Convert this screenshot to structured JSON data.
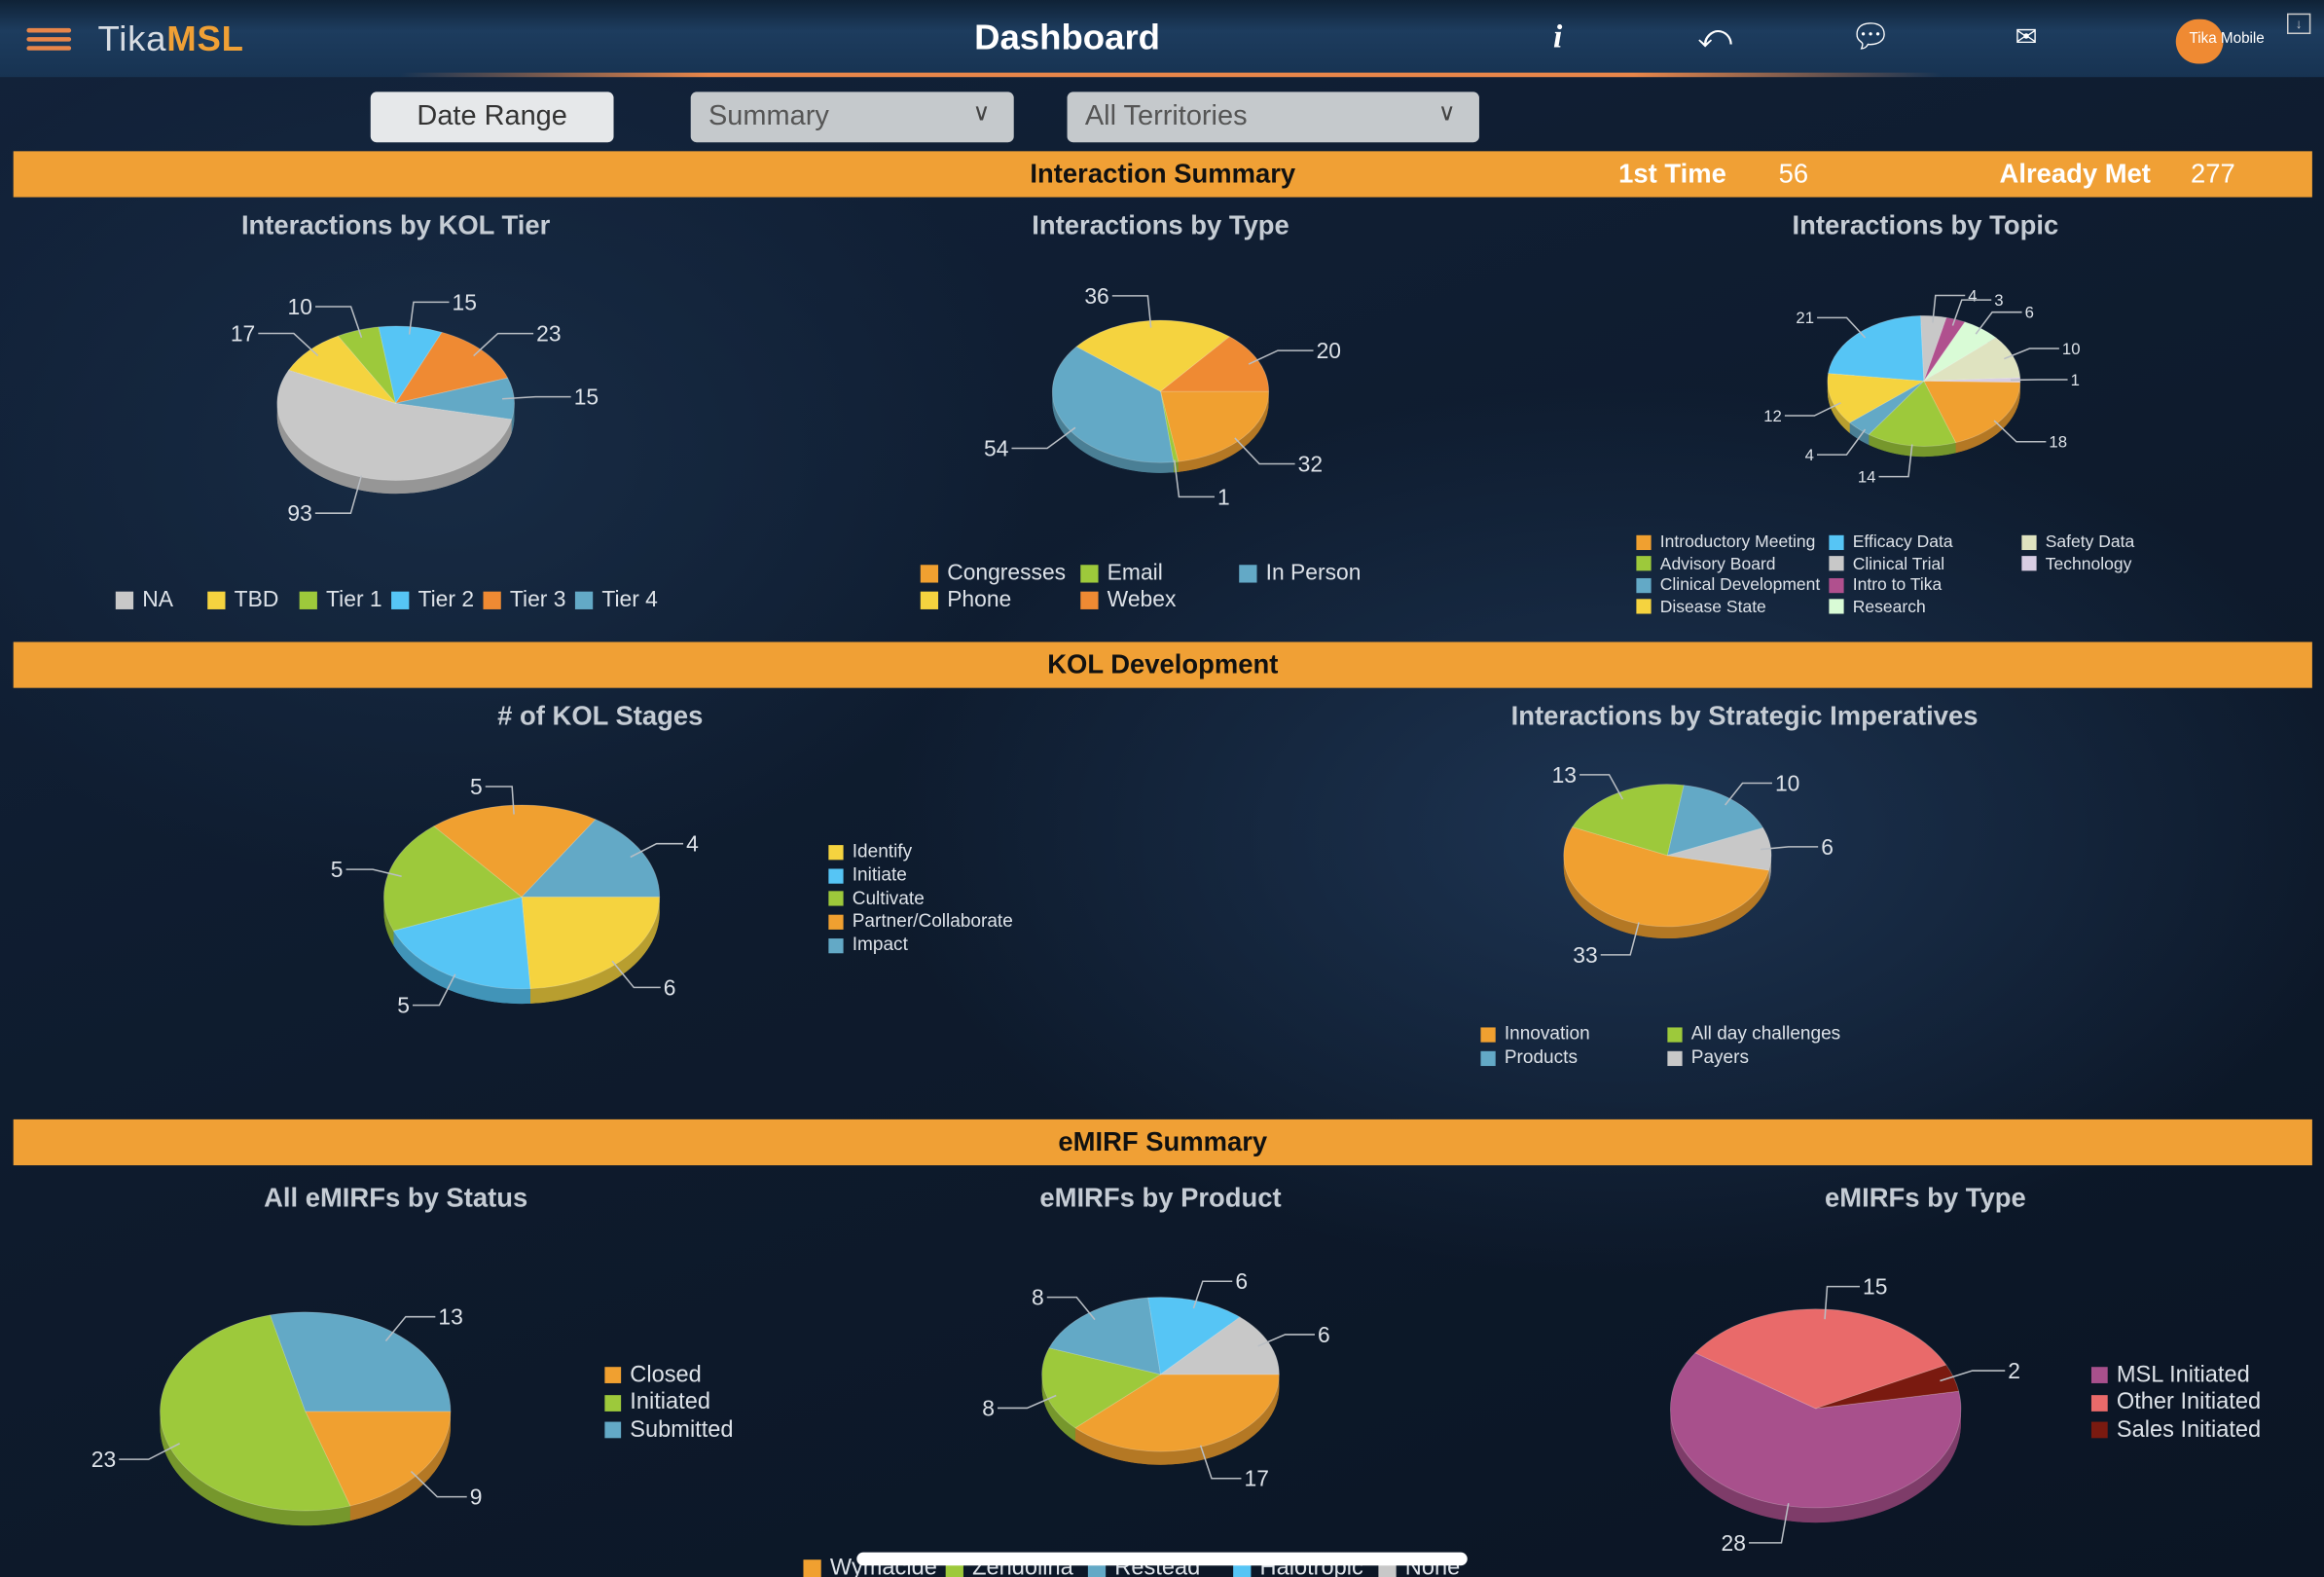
{
  "header": {
    "app_name_part1": "Tika",
    "app_name_part2": "MSL",
    "title": "Dashboard",
    "avatar_label": "Tika Mobile",
    "icons": [
      "menu-icon",
      "info-icon",
      "undo-icon",
      "chat-icon",
      "mail-icon",
      "download-icon"
    ]
  },
  "filters": {
    "date_range": "Date Range",
    "view": "Summary",
    "territory": "All Territories"
  },
  "sections": {
    "interaction_summary": {
      "title": "Interaction Summary",
      "first_time_label": "1st Time",
      "first_time_value": "56",
      "already_met_label": "Already Met",
      "already_met_value": "277"
    },
    "kol_development": {
      "title": "KOL Development"
    },
    "emirf_summary": {
      "title": "eMIRF Summary"
    }
  },
  "colors": {
    "accent": "#f0a035",
    "header_bg": "#1d3c5e"
  },
  "chart_data": [
    {
      "type": "pie",
      "title": "Interactions by KOL Tier",
      "categories": [
        "NA",
        "TBD",
        "Tier 1",
        "Tier 2",
        "Tier 3",
        "Tier 4"
      ],
      "values": [
        93,
        17,
        10,
        15,
        23,
        15
      ],
      "colors": [
        "#c8c8c8",
        "#f5d33f",
        "#9dc93b",
        "#56c5f5",
        "#ef8a33",
        "#63a9c6"
      ]
    },
    {
      "type": "pie",
      "title": "Interactions by Type",
      "categories": [
        "Congresses",
        "Email",
        "In Person",
        "Phone",
        "Webex"
      ],
      "values": [
        32,
        1,
        54,
        36,
        20
      ],
      "colors": [
        "#f0a030",
        "#9dc93b",
        "#63a9c6",
        "#f5d33f",
        "#ef8a33"
      ]
    },
    {
      "type": "pie",
      "title": "Interactions by Topic",
      "categories": [
        "Introductory Meeting",
        "Advisory Board",
        "Clinical Development",
        "Disease State",
        "Efficacy Data",
        "Clinical Trial",
        "Intro to Tika",
        "Research",
        "Safety Data",
        "Technology"
      ],
      "values": [
        18,
        14,
        4,
        12,
        21,
        4,
        3,
        6,
        10,
        1
      ],
      "colors": [
        "#f0a030",
        "#9dc93b",
        "#63a9c6",
        "#f5d33f",
        "#56c5f5",
        "#c8c8c8",
        "#b0508e",
        "#d9fbd6",
        "#dfe3c0",
        "#d8cde3"
      ]
    },
    {
      "type": "pie",
      "title": "# of KOL Stages",
      "categories": [
        "Identify",
        "Initiate",
        "Cultivate",
        "Partner/Collaborate",
        "Impact"
      ],
      "values": [
        6,
        5,
        5,
        5,
        4
      ],
      "colors": [
        "#f5d33f",
        "#56c5f5",
        "#9dc93b",
        "#f0a030",
        "#63a9c6"
      ]
    },
    {
      "type": "pie",
      "title": "Interactions by Strategic Imperatives",
      "categories": [
        "Innovation",
        "All day challenges",
        "Products",
        "Payers"
      ],
      "values": [
        33,
        13,
        10,
        6
      ],
      "colors": [
        "#f0a030",
        "#9dc93b",
        "#63a9c6",
        "#c8c8c8"
      ]
    },
    {
      "type": "pie",
      "title": "All eMIRFs by Status",
      "categories": [
        "Closed",
        "Initiated",
        "Submitted"
      ],
      "values": [
        9,
        23,
        13
      ],
      "colors": [
        "#f0a030",
        "#9dc93b",
        "#63a9c6"
      ]
    },
    {
      "type": "pie",
      "title": "eMIRFs by Product",
      "categories": [
        "Wymacide",
        "Zendolina",
        "Restead",
        "Halotropic",
        "None"
      ],
      "values": [
        17,
        8,
        8,
        6,
        6
      ],
      "colors": [
        "#f0a030",
        "#9dc93b",
        "#63a9c6",
        "#56c5f5",
        "#c8c8c8"
      ]
    },
    {
      "type": "pie",
      "title": "eMIRFs by Type",
      "categories": [
        "MSL Initiated",
        "Other Initiated",
        "Sales Initiated"
      ],
      "values": [
        28,
        15,
        2
      ],
      "colors": [
        "#a8508c",
        "#e96a6a",
        "#7a1a10"
      ]
    }
  ]
}
